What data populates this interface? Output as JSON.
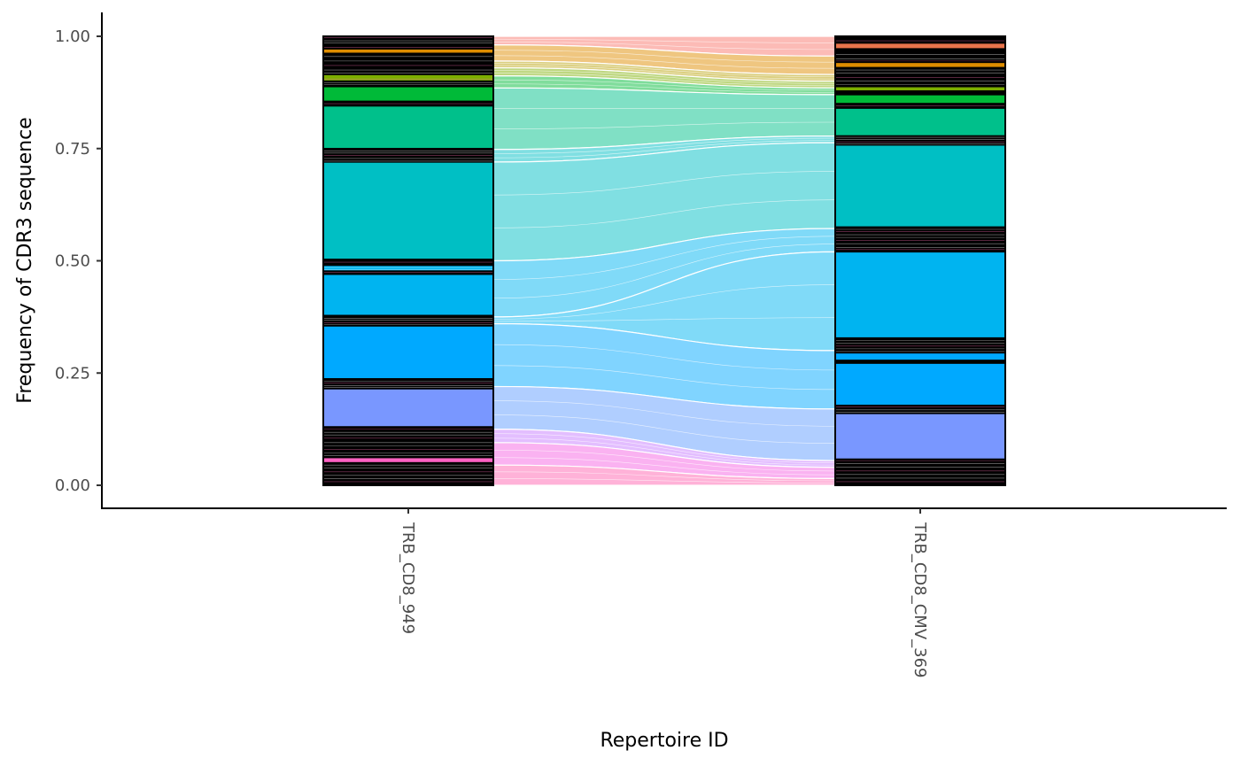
{
  "chart_data": {
    "type": "alluvial",
    "xlabel": "Repertoire ID",
    "ylabel": "Frequency of CDR3 sequence",
    "ylim": [
      0,
      1
    ],
    "yticks": [
      0.0,
      0.25,
      0.5,
      0.75,
      1.0
    ],
    "ytick_labels": [
      "0.00",
      "0.25",
      "0.50",
      "0.75",
      "1.00"
    ],
    "categories": [
      "TRB_CD8_949",
      "TRB_CD8_CMV_369"
    ],
    "grid": false,
    "legend": "none",
    "stratum_border_color": "#000000",
    "flow_line_color": "#ffffff",
    "flows": [
      {
        "color": "#F8766D",
        "from": [
          0.981,
          1.0
        ],
        "to": [
          0.956,
          1.0
        ]
      },
      {
        "color": "#DE8C00",
        "from": [
          0.945,
          0.981
        ],
        "to": [
          0.915,
          0.956
        ]
      },
      {
        "color": "#B79F00",
        "from": [
          0.93,
          0.945
        ],
        "to": [
          0.9,
          0.915
        ]
      },
      {
        "color": "#7CAE00",
        "from": [
          0.912,
          0.93
        ],
        "to": [
          0.885,
          0.9
        ]
      },
      {
        "color": "#00BA38",
        "from": [
          0.885,
          0.912
        ],
        "to": [
          0.87,
          0.885
        ]
      },
      {
        "color": "#00C08B",
        "from": [
          0.748,
          0.885
        ],
        "to": [
          0.778,
          0.87
        ]
      },
      {
        "color": "#00BFC4",
        "from": [
          0.72,
          0.748
        ],
        "to": [
          0.763,
          0.778
        ]
      },
      {
        "color": "#00BFC4",
        "from": [
          0.5,
          0.72
        ],
        "to": [
          0.572,
          0.763
        ]
      },
      {
        "color": "#00B4F0",
        "from": [
          0.375,
          0.5
        ],
        "to": [
          0.52,
          0.572
        ]
      },
      {
        "color": "#00B4F0",
        "from": [
          0.36,
          0.375
        ],
        "to": [
          0.3,
          0.52
        ]
      },
      {
        "color": "#00A9FF",
        "from": [
          0.22,
          0.36
        ],
        "to": [
          0.17,
          0.3
        ]
      },
      {
        "color": "#619CFF",
        "from": [
          0.125,
          0.22
        ],
        "to": [
          0.055,
          0.17
        ]
      },
      {
        "color": "#C77CFF",
        "from": [
          0.095,
          0.125
        ],
        "to": [
          0.04,
          0.055
        ]
      },
      {
        "color": "#F564E3",
        "from": [
          0.045,
          0.095
        ],
        "to": [
          0.015,
          0.04
        ]
      },
      {
        "color": "#FF64B0",
        "from": [
          0.0,
          0.045
        ],
        "to": [
          0.0,
          0.015
        ]
      }
    ],
    "strata": [
      {
        "category": "TRB_CD8_949",
        "blocks": [
          {
            "y0": 0.992,
            "y1": 1.0,
            "color": "#000000"
          },
          {
            "y0": 0.962,
            "y1": 0.972,
            "color": "#DE8C00"
          },
          {
            "y0": 0.915,
            "y1": 0.962,
            "color": "#000000"
          },
          {
            "y0": 0.9,
            "y1": 0.915,
            "color": "#7CAE00"
          },
          {
            "y0": 0.888,
            "y1": 0.9,
            "color": "#000000"
          },
          {
            "y0": 0.855,
            "y1": 0.888,
            "color": "#00BA38"
          },
          {
            "y0": 0.845,
            "y1": 0.855,
            "color": "#000000"
          },
          {
            "y0": 0.75,
            "y1": 0.845,
            "color": "#00C08B"
          },
          {
            "y0": 0.72,
            "y1": 0.75,
            "color": "#000000"
          },
          {
            "y0": 0.503,
            "y1": 0.72,
            "color": "#00BFC4"
          },
          {
            "y0": 0.49,
            "y1": 0.503,
            "color": "#000000"
          },
          {
            "y0": 0.477,
            "y1": 0.49,
            "color": "#00B4F0"
          },
          {
            "y0": 0.47,
            "y1": 0.477,
            "color": "#000000"
          },
          {
            "y0": 0.378,
            "y1": 0.47,
            "color": "#00B4F0"
          },
          {
            "y0": 0.355,
            "y1": 0.378,
            "color": "#000000"
          },
          {
            "y0": 0.237,
            "y1": 0.355,
            "color": "#00A9FF"
          },
          {
            "y0": 0.215,
            "y1": 0.237,
            "color": "#000000"
          },
          {
            "y0": 0.13,
            "y1": 0.215,
            "color": "#7997FF"
          },
          {
            "y0": 0.1,
            "y1": 0.13,
            "color": "#000000"
          },
          {
            "y0": 0.05,
            "y1": 0.062,
            "color": "#FF61C3"
          },
          {
            "y0": 0.062,
            "y1": 0.1,
            "color": "#000000"
          },
          {
            "y0": 0.0,
            "y1": 0.05,
            "color": "#000000"
          }
        ],
        "separators": [
          0.997,
          0.99,
          0.985,
          0.975,
          0.955,
          0.945,
          0.935,
          0.925,
          0.918,
          0.905,
          0.897,
          0.893,
          0.85,
          0.745,
          0.74,
          0.735,
          0.728,
          0.722,
          0.497,
          0.485,
          0.48,
          0.474,
          0.372,
          0.368,
          0.362,
          0.358,
          0.232,
          0.228,
          0.222,
          0.218,
          0.125,
          0.118,
          0.112,
          0.105,
          0.095,
          0.088,
          0.08,
          0.072,
          0.066,
          0.058,
          0.045,
          0.038,
          0.03,
          0.022,
          0.015,
          0.008
        ]
      },
      {
        "category": "TRB_CD8_CMV_369",
        "blocks": [
          {
            "y0": 0.995,
            "y1": 1.0,
            "color": "#000000"
          },
          {
            "y0": 0.972,
            "y1": 0.985,
            "color": "#E9744B"
          },
          {
            "y0": 0.962,
            "y1": 0.972,
            "color": "#000000"
          },
          {
            "y0": 0.93,
            "y1": 0.942,
            "color": "#DE8C00"
          },
          {
            "y0": 0.888,
            "y1": 0.93,
            "color": "#000000"
          },
          {
            "y0": 0.878,
            "y1": 0.888,
            "color": "#7CAE00"
          },
          {
            "y0": 0.87,
            "y1": 0.878,
            "color": "#000000"
          },
          {
            "y0": 0.85,
            "y1": 0.87,
            "color": "#00BA38"
          },
          {
            "y0": 0.84,
            "y1": 0.85,
            "color": "#000000"
          },
          {
            "y0": 0.778,
            "y1": 0.84,
            "color": "#00C08B"
          },
          {
            "y0": 0.758,
            "y1": 0.778,
            "color": "#000000"
          },
          {
            "y0": 0.575,
            "y1": 0.758,
            "color": "#00BFC4"
          },
          {
            "y0": 0.52,
            "y1": 0.575,
            "color": "#000000"
          },
          {
            "y0": 0.328,
            "y1": 0.52,
            "color": "#00B4F0"
          },
          {
            "y0": 0.295,
            "y1": 0.328,
            "color": "#000000"
          },
          {
            "y0": 0.278,
            "y1": 0.295,
            "color": "#00A9FF"
          },
          {
            "y0": 0.272,
            "y1": 0.278,
            "color": "#000000"
          },
          {
            "y0": 0.178,
            "y1": 0.272,
            "color": "#00A9FF"
          },
          {
            "y0": 0.16,
            "y1": 0.178,
            "color": "#000000"
          },
          {
            "y0": 0.058,
            "y1": 0.16,
            "color": "#7997FF"
          },
          {
            "y0": 0.0,
            "y1": 0.058,
            "color": "#000000"
          }
        ],
        "separators": [
          0.99,
          0.96,
          0.95,
          0.945,
          0.925,
          0.918,
          0.908,
          0.9,
          0.893,
          0.845,
          0.775,
          0.77,
          0.765,
          0.76,
          0.57,
          0.565,
          0.558,
          0.552,
          0.545,
          0.538,
          0.53,
          0.525,
          0.322,
          0.316,
          0.31,
          0.304,
          0.298,
          0.175,
          0.168,
          0.163,
          0.055,
          0.048,
          0.04,
          0.032,
          0.024,
          0.016,
          0.008
        ]
      }
    ]
  }
}
